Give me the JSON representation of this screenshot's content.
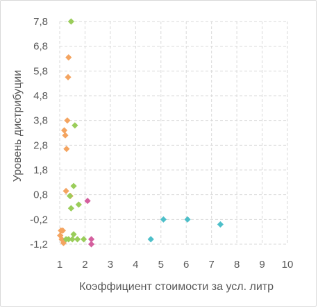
{
  "chart_data": {
    "type": "scatter",
    "title": "",
    "xlabel": "Коэффициент стоимости за усл. литр",
    "ylabel": "Уровень  дистрибуции",
    "xlim": [
      1,
      10
    ],
    "ylim": [
      -1.2,
      7.8
    ],
    "x_ticks": [
      "1",
      "2",
      "3",
      "4",
      "5",
      "6",
      "7",
      "8",
      "9",
      "10"
    ],
    "y_ticks": [
      "-1,2",
      "-0,2",
      "0,8",
      "1,8",
      "2,8",
      "3,8",
      "4,8",
      "5,8",
      "6,8",
      "7,8"
    ],
    "grid": "dashed major gridlines on both axes",
    "legend": "none",
    "series": [
      {
        "color": "#F4A460",
        "points": [
          {
            "x": 1.35,
            "y": 6.35
          },
          {
            "x": 1.33,
            "y": 5.55
          },
          {
            "x": 1.3,
            "y": 3.8
          },
          {
            "x": 1.18,
            "y": 3.4
          },
          {
            "x": 1.22,
            "y": 3.2
          },
          {
            "x": 1.27,
            "y": 2.65
          },
          {
            "x": 1.25,
            "y": 0.95
          },
          {
            "x": 1.42,
            "y": 0.75
          },
          {
            "x": 1.05,
            "y": -0.65
          },
          {
            "x": 1.12,
            "y": -0.65
          },
          {
            "x": 1.02,
            "y": -0.85
          },
          {
            "x": 1.08,
            "y": -1.0
          },
          {
            "x": 1.15,
            "y": -1.15
          }
        ]
      },
      {
        "color": "#9ACD5A",
        "points": [
          {
            "x": 1.45,
            "y": 7.8
          },
          {
            "x": 1.6,
            "y": 3.6
          },
          {
            "x": 1.55,
            "y": 1.15
          },
          {
            "x": 1.4,
            "y": 0.75
          },
          {
            "x": 1.75,
            "y": 0.4
          },
          {
            "x": 1.45,
            "y": 0.25
          },
          {
            "x": 1.55,
            "y": -0.8
          },
          {
            "x": 1.35,
            "y": -1.0
          },
          {
            "x": 1.5,
            "y": -1.0
          },
          {
            "x": 1.25,
            "y": -1.0
          },
          {
            "x": 1.7,
            "y": -1.0
          },
          {
            "x": 1.95,
            "y": -1.0
          }
        ]
      },
      {
        "color": "#D45F9E",
        "points": [
          {
            "x": 2.1,
            "y": 0.55
          },
          {
            "x": 2.25,
            "y": -1.0
          },
          {
            "x": 2.25,
            "y": -1.2
          }
        ]
      },
      {
        "color": "#4DBFC9",
        "points": [
          {
            "x": 4.6,
            "y": -1.0
          },
          {
            "x": 5.1,
            "y": -0.2
          },
          {
            "x": 6.05,
            "y": -0.2
          },
          {
            "x": 7.35,
            "y": -0.4
          }
        ]
      }
    ]
  }
}
